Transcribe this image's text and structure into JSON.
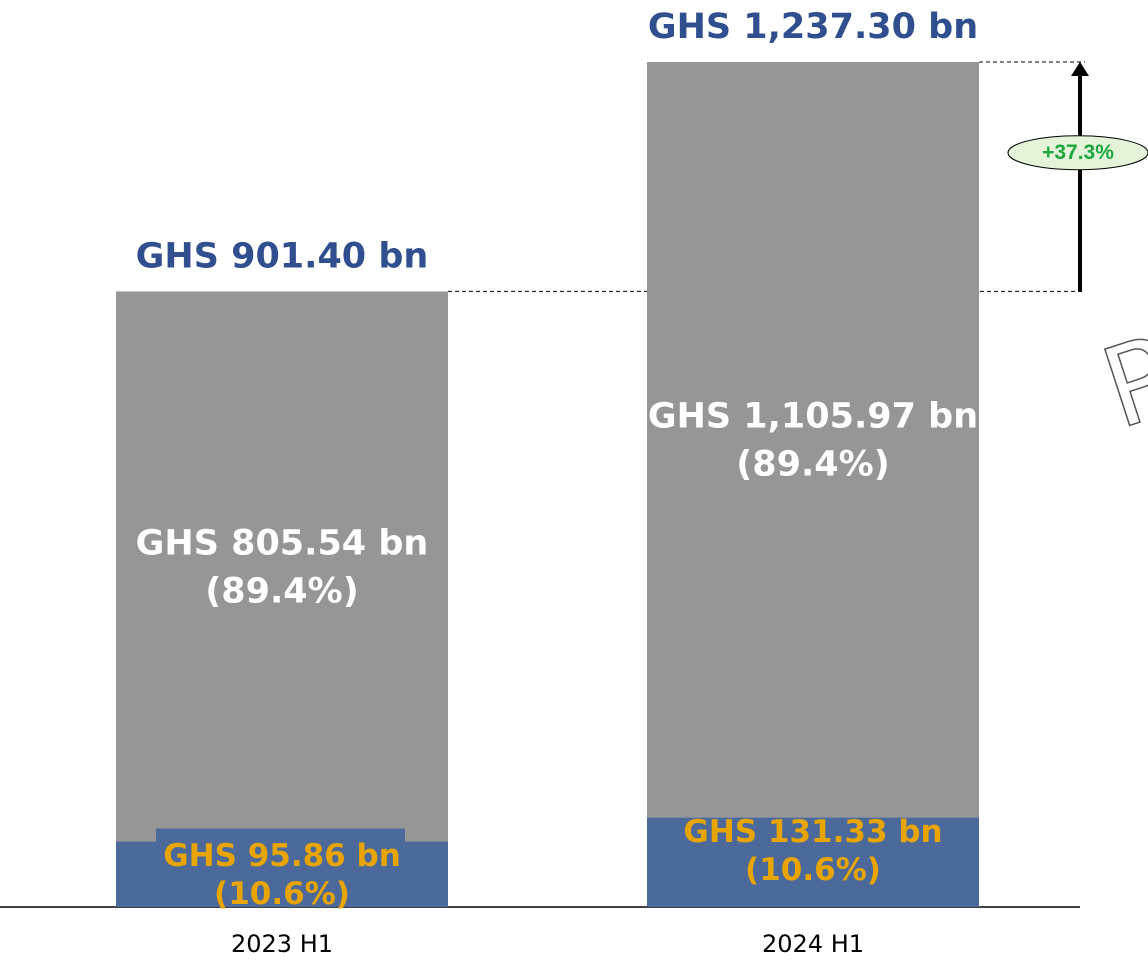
{
  "chart_data": {
    "type": "stacked_bar",
    "categories": [
      "2023 H1",
      "2024 H1"
    ],
    "series": [
      {
        "color": "#4b6a9b",
        "values": [
          95.86,
          131.33
        ],
        "value_labels": [
          "GHS 95.86 bn",
          "GHS 131.33 bn"
        ],
        "share_labels": [
          "(10.6%)",
          "(10.6%)"
        ],
        "label_color": "#e8a400"
      },
      {
        "color": "#969696",
        "values": [
          805.54,
          1105.97
        ],
        "value_labels": [
          "GHS 805.54 bn",
          "GHS 1,105.97 bn"
        ],
        "share_labels": [
          "(89.4%)",
          "(89.4%)"
        ],
        "label_color": "#ffffff"
      }
    ],
    "totals": [
      901.4,
      1237.3
    ],
    "total_labels": [
      "GHS 901.40 bn",
      "GHS 1,237.30 bn"
    ],
    "total_label_color": "#2f4f8f",
    "annotation": "+37.3%",
    "watermark": "PUB"
  }
}
